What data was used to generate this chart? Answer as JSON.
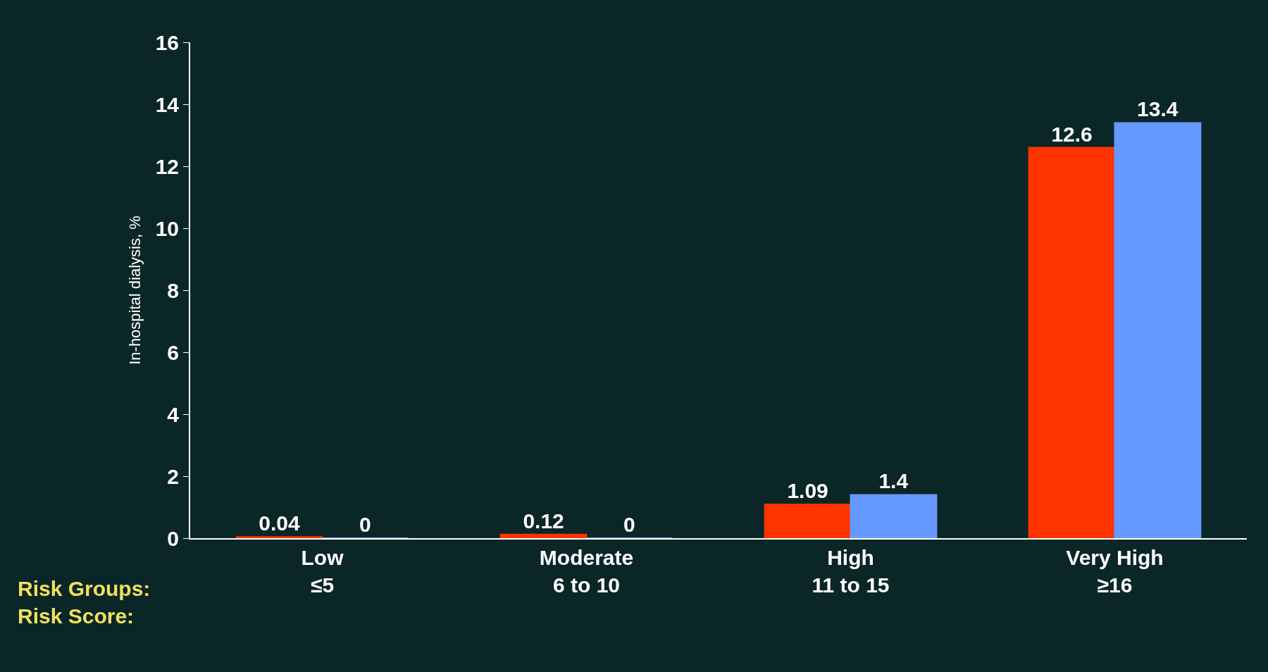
{
  "chart_data": {
    "type": "bar",
    "ylabel": "In-hospital dialysis, %",
    "categories": [
      "Low\n≤5",
      "Moderate\n6 to 10",
      "High\n11 to 15",
      "Very High\n≥16"
    ],
    "series": [
      {
        "color": "#ff3300",
        "values": [
          0.04,
          0.12,
          1.09,
          12.6
        ]
      },
      {
        "color": "#6699ff",
        "values": [
          0,
          0,
          1.4,
          13.4
        ]
      }
    ],
    "ylim": [
      0,
      16
    ],
    "yticks": [
      0,
      2,
      4,
      6,
      8,
      10,
      12,
      14,
      16
    ],
    "data_labels": true,
    "grid": false,
    "legend": false,
    "annotations": [
      "Risk Groups:\nRisk Score:"
    ]
  }
}
